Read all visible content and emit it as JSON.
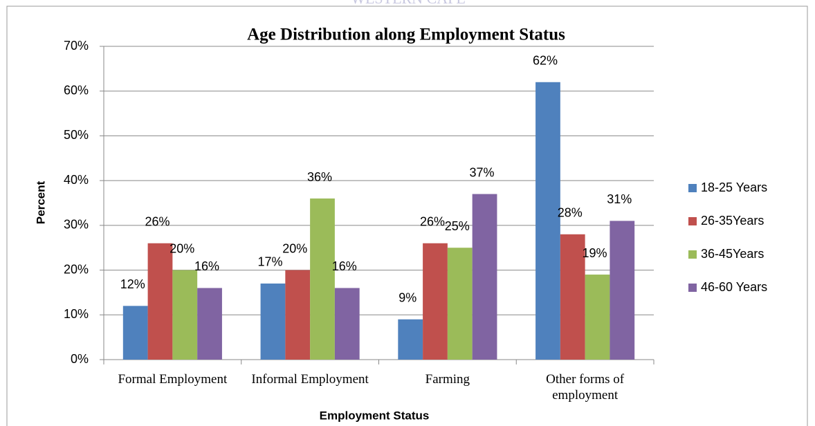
{
  "chart_data": {
    "type": "bar",
    "watermark": "WESTERN CAPE",
    "title": "Age Distribution along Employment Status",
    "x_label": "Employment Status",
    "y_label": "Percent",
    "categories": [
      "Formal Employment",
      "Informal Employment",
      "Farming",
      "Other forms of employment"
    ],
    "series": [
      {
        "name": "18-25 Years",
        "color": "#4f81bd",
        "values": [
          12,
          17,
          9,
          62
        ],
        "value_labels": [
          "12%",
          "17%",
          "9%",
          "62%"
        ]
      },
      {
        "name": "26-35Years",
        "color": "#c0504d",
        "values": [
          26,
          20,
          26,
          28
        ],
        "value_labels": [
          "26%",
          "20%",
          "26%",
          "28%"
        ]
      },
      {
        "name": "36-45Years",
        "color": "#9bbb59",
        "values": [
          20,
          36,
          25,
          19
        ],
        "value_labels": [
          "20%",
          "36%",
          "25%",
          "19%"
        ]
      },
      {
        "name": "46-60 Years",
        "color": "#8064a2",
        "values": [
          16,
          16,
          37,
          31
        ],
        "value_labels": [
          "16%",
          "16%",
          "37%",
          "31%"
        ]
      }
    ],
    "ylim": [
      0,
      70
    ],
    "yticks": [
      {
        "value": 0,
        "label": "0%"
      },
      {
        "value": 10,
        "label": "10%"
      },
      {
        "value": 20,
        "label": "20%"
      },
      {
        "value": 30,
        "label": "30%"
      },
      {
        "value": 40,
        "label": "40%"
      },
      {
        "value": 50,
        "label": "50%"
      },
      {
        "value": 60,
        "label": "60%"
      },
      {
        "value": 70,
        "label": "70%"
      }
    ],
    "grid": true,
    "legend": "right"
  }
}
